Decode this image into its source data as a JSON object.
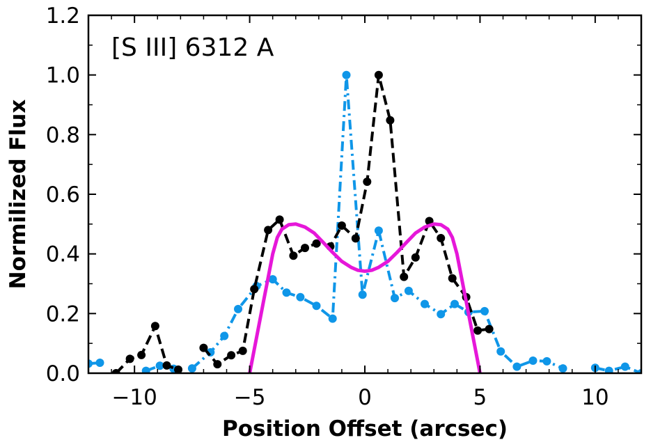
{
  "chart_data": {
    "type": "line",
    "title": "",
    "annotation": "[S III] 6312 A",
    "xlabel": "Position Offset (arcsec)",
    "ylabel": "Normilized Flux",
    "xlim": [
      -12,
      12
    ],
    "ylim": [
      0,
      1.2
    ],
    "xticks": [
      -10,
      -5,
      0,
      5,
      10
    ],
    "xtick_labels": [
      "−10",
      "−5",
      "0",
      "5",
      "10"
    ],
    "yticks": [
      0.0,
      0.2,
      0.4,
      0.6,
      0.8,
      1.0,
      1.2
    ],
    "ytick_labels": [
      "0.0",
      "0.2",
      "0.4",
      "0.6",
      "0.8",
      "1.0",
      "1.2"
    ],
    "x_minor_step": 1,
    "y_minor_step": 0.1,
    "grid": false,
    "legend": "none",
    "series": [
      {
        "color": "#0f96e8",
        "style": "dash-dot",
        "markers": true,
        "segments": [
          [
            [
              -12.0,
              0.032
            ],
            [
              -11.5,
              0.035
            ]
          ],
          [
            [
              -9.5,
              0.008
            ],
            [
              -8.9,
              0.025
            ],
            [
              -8.3,
              0.015
            ]
          ],
          [
            [
              -7.5,
              0.016
            ],
            [
              -6.7,
              0.07
            ],
            [
              -6.1,
              0.125
            ],
            [
              -5.5,
              0.215
            ],
            [
              -4.7,
              0.292
            ],
            [
              -4.0,
              0.315
            ],
            [
              -3.4,
              0.27
            ],
            [
              -2.8,
              0.255
            ],
            [
              -2.1,
              0.226
            ],
            [
              -1.4,
              0.183
            ],
            [
              -0.8,
              1.0
            ],
            [
              -0.1,
              0.263
            ],
            [
              0.6,
              0.478
            ],
            [
              1.3,
              0.252
            ],
            [
              1.9,
              0.276
            ],
            [
              2.6,
              0.232
            ],
            [
              3.3,
              0.198
            ],
            [
              3.9,
              0.232
            ],
            [
              4.5,
              0.205
            ],
            [
              5.2,
              0.208
            ],
            [
              5.9,
              0.073
            ],
            [
              6.6,
              0.022
            ],
            [
              7.3,
              0.042
            ],
            [
              7.9,
              0.04
            ],
            [
              8.6,
              0.016
            ]
          ],
          [
            [
              10.0,
              0.018
            ],
            [
              10.6,
              0.008
            ],
            [
              11.3,
              0.022
            ],
            [
              12.0,
              0.0
            ]
          ]
        ]
      },
      {
        "color": "#000000",
        "style": "dashed",
        "markers": true,
        "segments": [
          [
            [
              -10.8,
              0.0
            ],
            [
              -10.2,
              0.048
            ],
            [
              -9.7,
              0.061
            ],
            [
              -9.1,
              0.158
            ],
            [
              -8.6,
              0.026
            ],
            [
              -8.1,
              0.012
            ]
          ],
          [
            [
              -7.0,
              0.085
            ],
            [
              -6.4,
              0.03
            ],
            [
              -5.8,
              0.06
            ],
            [
              -5.3,
              0.075
            ],
            [
              -4.8,
              0.282
            ],
            [
              -4.2,
              0.48
            ],
            [
              -3.7,
              0.515
            ],
            [
              -3.1,
              0.394
            ],
            [
              -2.6,
              0.42
            ],
            [
              -2.1,
              0.435
            ],
            [
              -1.5,
              0.425
            ],
            [
              -1.0,
              0.495
            ],
            [
              -0.4,
              0.452
            ],
            [
              0.1,
              0.642
            ],
            [
              0.6,
              1.0
            ],
            [
              1.1,
              0.848
            ],
            [
              1.7,
              0.323
            ],
            [
              2.2,
              0.388
            ],
            [
              2.8,
              0.51
            ],
            [
              3.3,
              0.453
            ],
            [
              3.8,
              0.318
            ],
            [
              4.4,
              0.255
            ],
            [
              4.9,
              0.143
            ],
            [
              5.4,
              0.148
            ]
          ]
        ]
      },
      {
        "color": "#e617d9",
        "style": "solid",
        "markers": false,
        "points": [
          [
            -5.0,
            0.0
          ],
          [
            -4.8,
            0.08
          ],
          [
            -4.6,
            0.16
          ],
          [
            -4.4,
            0.24
          ],
          [
            -4.2,
            0.32
          ],
          [
            -4.0,
            0.4
          ],
          [
            -3.8,
            0.455
          ],
          [
            -3.6,
            0.483
          ],
          [
            -3.3,
            0.498
          ],
          [
            -3.0,
            0.5
          ],
          [
            -2.6,
            0.49
          ],
          [
            -2.2,
            0.47
          ],
          [
            -1.8,
            0.438
          ],
          [
            -1.4,
            0.405
          ],
          [
            -1.0,
            0.375
          ],
          [
            -0.6,
            0.355
          ],
          [
            -0.3,
            0.345
          ],
          [
            0.0,
            0.342
          ],
          [
            0.3,
            0.345
          ],
          [
            0.6,
            0.355
          ],
          [
            1.0,
            0.375
          ],
          [
            1.4,
            0.405
          ],
          [
            1.8,
            0.438
          ],
          [
            2.2,
            0.47
          ],
          [
            2.6,
            0.49
          ],
          [
            3.0,
            0.5
          ],
          [
            3.3,
            0.498
          ],
          [
            3.6,
            0.483
          ],
          [
            3.8,
            0.455
          ],
          [
            4.0,
            0.4
          ],
          [
            4.2,
            0.32
          ],
          [
            4.4,
            0.24
          ],
          [
            4.6,
            0.16
          ],
          [
            4.8,
            0.08
          ],
          [
            5.0,
            0.0
          ]
        ]
      }
    ]
  }
}
